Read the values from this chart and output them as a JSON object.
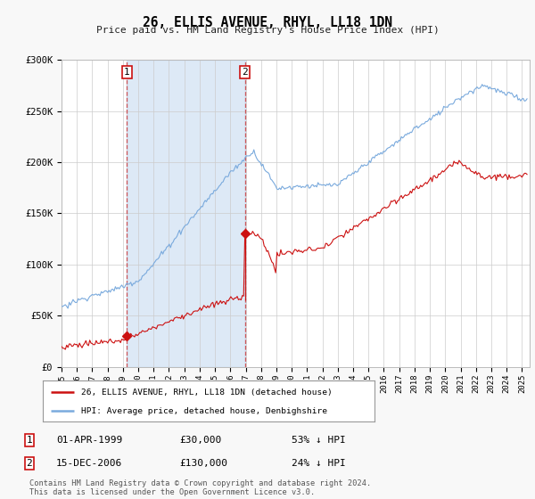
{
  "title": "26, ELLIS AVENUE, RHYL, LL18 1DN",
  "subtitle": "Price paid vs. HM Land Registry's House Price Index (HPI)",
  "hpi_color": "#7aaadd",
  "price_color": "#cc1111",
  "background_color": "#f8f8f8",
  "plot_bg_color": "#ffffff",
  "shade_color": "#ddeeff",
  "ylim": [
    0,
    300000
  ],
  "yticks": [
    0,
    50000,
    100000,
    150000,
    200000,
    250000,
    300000
  ],
  "ytick_labels": [
    "£0",
    "£50K",
    "£100K",
    "£150K",
    "£200K",
    "£250K",
    "£300K"
  ],
  "purchase1_date": "01-APR-1999",
  "purchase1_price": 30000,
  "purchase1_pct": "53% ↓ HPI",
  "purchase1_year": 1999.25,
  "purchase2_date": "15-DEC-2006",
  "purchase2_price": 130000,
  "purchase2_pct": "24% ↓ HPI",
  "purchase2_year": 2006.958,
  "legend_label1": "26, ELLIS AVENUE, RHYL, LL18 1DN (detached house)",
  "legend_label2": "HPI: Average price, detached house, Denbighshire",
  "footer": "Contains HM Land Registry data © Crown copyright and database right 2024.\nThis data is licensed under the Open Government Licence v3.0.",
  "xstart": 1995.0,
  "xend": 2025.5
}
